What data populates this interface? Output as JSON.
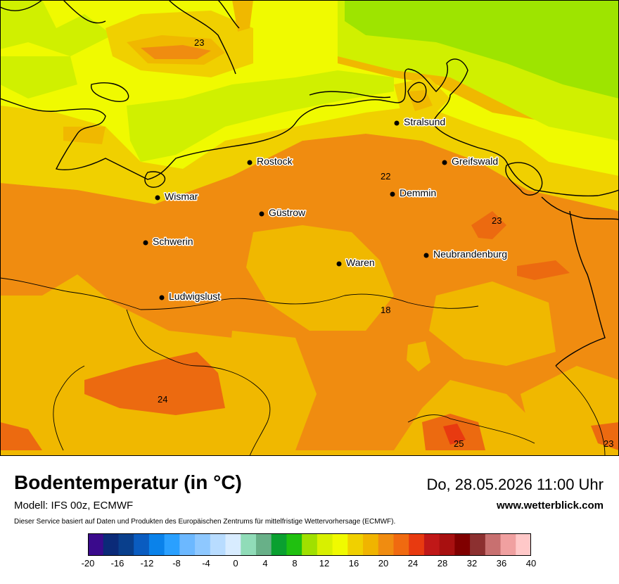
{
  "map": {
    "cities": [
      {
        "name": "Stralsund"
      },
      {
        "name": "Rostock"
      },
      {
        "name": "Greifswald"
      },
      {
        "name": "Demmin"
      },
      {
        "name": "Wismar"
      },
      {
        "name": "Güstrow"
      },
      {
        "name": "Schwerin"
      },
      {
        "name": "Neubrandenburg"
      },
      {
        "name": "Waren"
      },
      {
        "name": "Ludwigslust"
      }
    ],
    "values": [
      "23",
      "22",
      "23",
      "18",
      "24",
      "25",
      "23"
    ],
    "band_colors": {
      "green": "#9ee400",
      "lime": "#d0f000",
      "yellow": "#f0fa00",
      "gold": "#f0d000",
      "amber": "#f0b800",
      "orange": "#f08c10",
      "deep_orange": "#ec6a10",
      "red": "#e83a10"
    }
  },
  "footer": {
    "title": "Bodentemperatur (in °C)",
    "model": "Modell: IFS 00z, ECMWF",
    "note": "Dieser Service basiert auf Daten und Produkten des Europäischen Zentrums für mittelfristige Wettervorhersage (ECMWF).",
    "date": "Do, 28.05.2026 11:00 Uhr",
    "site": "www.wetterblick.com"
  },
  "legend": {
    "ticks": [
      "-20",
      "-16",
      "-12",
      "-8",
      "-4",
      "0",
      "4",
      "8",
      "12",
      "16",
      "20",
      "24",
      "28",
      "32",
      "36",
      "40"
    ],
    "colors": [
      "#3a0a8c",
      "#0b2a78",
      "#093f8c",
      "#0a5cc0",
      "#0a82ea",
      "#2aa0ff",
      "#6cb8ff",
      "#8ec8ff",
      "#b8dcff",
      "#d8ecff",
      "#90dcb8",
      "#68b088",
      "#0aa030",
      "#20c010",
      "#a0e000",
      "#d8f000",
      "#f0fa00",
      "#f0d000",
      "#f0b400",
      "#f08c10",
      "#f06a10",
      "#e83a10",
      "#c01818",
      "#a81010",
      "#800000",
      "#8c3030",
      "#c87070",
      "#f0a0a0",
      "#ffc8c8"
    ]
  }
}
